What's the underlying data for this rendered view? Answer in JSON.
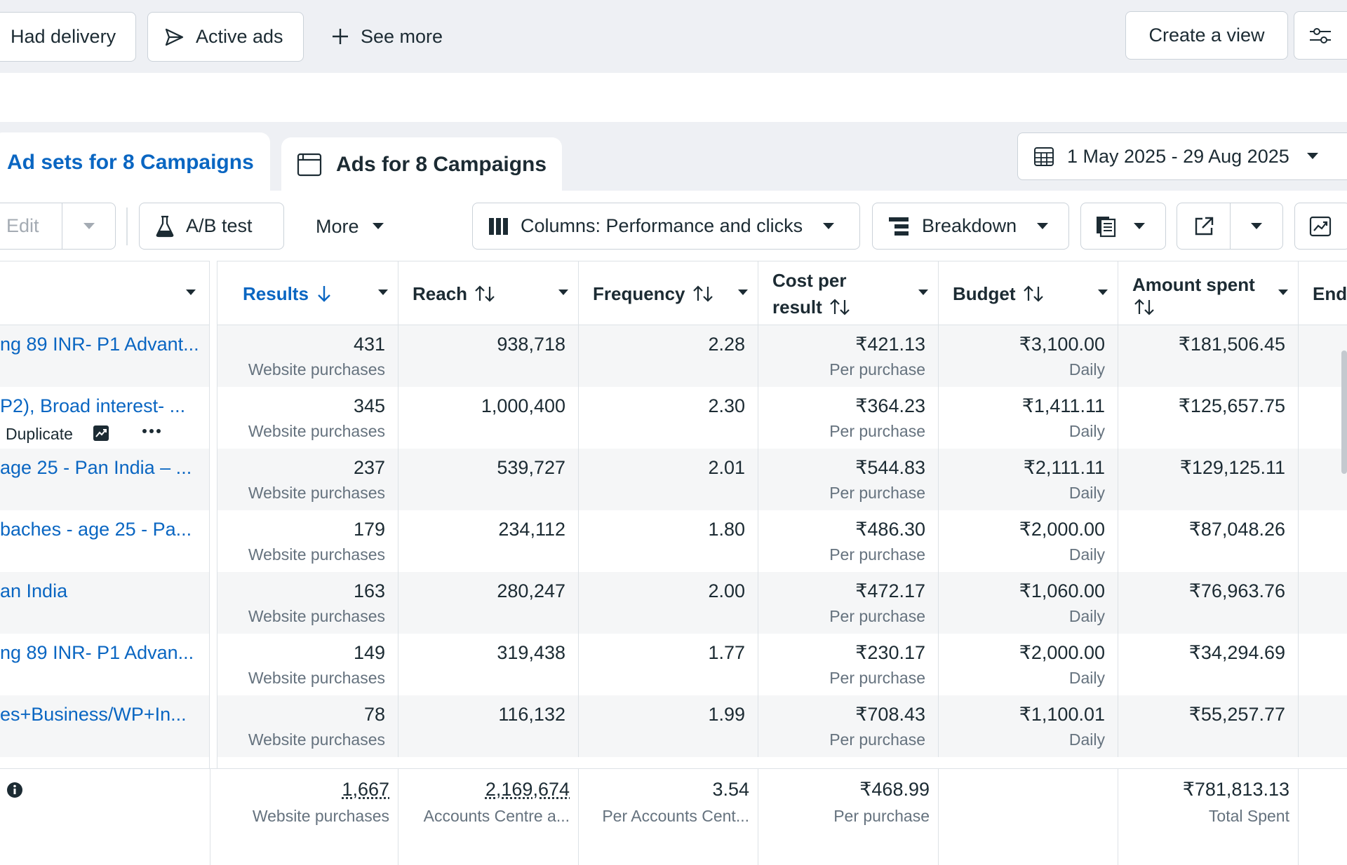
{
  "filters": {
    "had_delivery": "Had delivery",
    "active_ads": "Active ads",
    "see_more": "See more",
    "create_view": "Create a view"
  },
  "tabs": {
    "ad_sets": "Ad sets for 8 Campaigns",
    "ads": "Ads for 8 Campaigns"
  },
  "date_range": "1 May 2025 - 29 Aug 2025",
  "toolbar": {
    "edit": "Edit",
    "ab_test": "A/B test",
    "more": "More",
    "columns": "Columns: Performance and clicks",
    "breakdown": "Breakdown"
  },
  "columns": {
    "results": "Results",
    "reach": "Reach",
    "frequency": "Frequency",
    "cost_per_result_1": "Cost per",
    "cost_per_result_2": "result",
    "budget": "Budget",
    "amount_spent_1": "Amount spent",
    "ends": "End"
  },
  "rows": [
    {
      "name": "ng 89 INR- P1 Advant...",
      "results": "431",
      "results_sub": "Website purchases",
      "reach": "938,718",
      "frequency": "2.28",
      "cpr": "₹421.13",
      "cpr_sub": "Per purchase",
      "budget": "₹3,100.00",
      "budget_sub": "Daily",
      "spent": "₹181,506.45"
    },
    {
      "name": "P2), Broad interest- ...",
      "results": "345",
      "results_sub": "Website purchases",
      "reach": "1,000,400",
      "frequency": "2.30",
      "cpr": "₹364.23",
      "cpr_sub": "Per purchase",
      "budget": "₹1,411.11",
      "budget_sub": "Daily",
      "spent": "₹125,657.75"
    },
    {
      "name": "age 25 - Pan India – ...",
      "results": "237",
      "results_sub": "Website purchases",
      "reach": "539,727",
      "frequency": "2.01",
      "cpr": "₹544.83",
      "cpr_sub": "Per purchase",
      "budget": "₹2,111.11",
      "budget_sub": "Daily",
      "spent": "₹129,125.11"
    },
    {
      "name": "baches - age 25 - Pa...",
      "results": "179",
      "results_sub": "Website purchases",
      "reach": "234,112",
      "frequency": "1.80",
      "cpr": "₹486.30",
      "cpr_sub": "Per purchase",
      "budget": "₹2,000.00",
      "budget_sub": "Daily",
      "spent": "₹87,048.26"
    },
    {
      "name": "an India",
      "results": "163",
      "results_sub": "Website purchases",
      "reach": "280,247",
      "frequency": "2.00",
      "cpr": "₹472.17",
      "cpr_sub": "Per purchase",
      "budget": "₹1,060.00",
      "budget_sub": "Daily",
      "spent": "₹76,963.76"
    },
    {
      "name": "ng 89 INR- P1 Advan...",
      "results": "149",
      "results_sub": "Website purchases",
      "reach": "319,438",
      "frequency": "1.77",
      "cpr": "₹230.17",
      "cpr_sub": "Per purchase",
      "budget": "₹2,000.00",
      "budget_sub": "Daily",
      "spent": "₹34,294.69"
    },
    {
      "name": "es+Business/WP+In...",
      "results": "78",
      "results_sub": "Website purchases",
      "reach": "116,132",
      "frequency": "1.99",
      "cpr": "₹708.43",
      "cpr_sub": "Per purchase",
      "budget": "₹1,100.01",
      "budget_sub": "Daily",
      "spent": "₹55,257.77"
    }
  ],
  "row_actions": {
    "duplicate": "Duplicate"
  },
  "totals": {
    "results": "1,667",
    "results_sub": "Website purchases",
    "reach": "2,169,674",
    "reach_sub": "Accounts Centre a...",
    "frequency": "3.54",
    "frequency_sub": "Per Accounts Cent...",
    "cpr": "₹468.99",
    "cpr_sub": "Per purchase",
    "spent": "₹781,813.13",
    "spent_sub": "Total Spent"
  },
  "colors": {
    "accent": "#0a66c2",
    "text": "#1c2b33",
    "muted": "#65727e"
  }
}
